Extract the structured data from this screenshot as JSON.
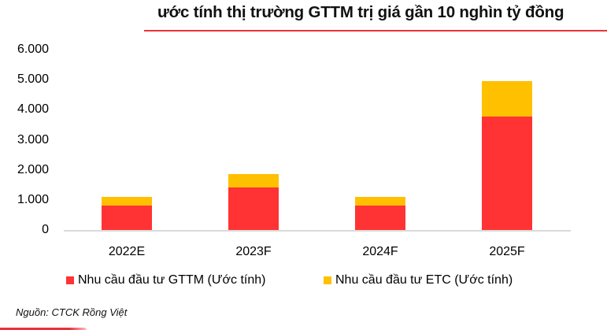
{
  "title": "ước tính thị trường GTTM trị giá gần 10 nghìn tỷ đồng",
  "source": "Nguồn: CTCK Rồng Việt",
  "colors": {
    "gttm": "#FF3333",
    "etc": "#FFC000",
    "accent_rule": "#E8323A",
    "axis": "#D9D9D9"
  },
  "y_ticks": [
    "6.000",
    "5.000",
    "4.000",
    "3.000",
    "2.000",
    "1.000",
    "0"
  ],
  "legend": [
    {
      "label": "Nhu cầu đầu tư GTTM (Ước tính)",
      "color": "#FF3333"
    },
    {
      "label": "Nhu cầu đầu tư ETC (Ước tính)",
      "color": "#FFC000"
    }
  ],
  "chart_data": {
    "type": "bar",
    "stacked": true,
    "title": "ước tính thị trường GTTM trị giá gần 10 nghìn tỷ đồng",
    "categories": [
      "2022E",
      "2023F",
      "2024F",
      "2025F"
    ],
    "series": [
      {
        "name": "Nhu cầu đầu tư GTTM (Ước tính)",
        "color": "#FF3333",
        "values": [
          810,
          1410,
          810,
          3770
        ]
      },
      {
        "name": "Nhu cầu đầu tư ETC (Ước tính)",
        "color": "#FFC000",
        "values": [
          290,
          450,
          290,
          1180
        ]
      }
    ],
    "totals": [
      1100,
      1860,
      1100,
      4950
    ],
    "xlabel": "",
    "ylabel": "",
    "ylim": [
      0,
      6000
    ],
    "yticks": [
      0,
      1000,
      2000,
      3000,
      4000,
      5000,
      6000
    ],
    "grid": false,
    "legend_position": "bottom",
    "source": "Nguồn: CTCK Rồng Việt"
  }
}
